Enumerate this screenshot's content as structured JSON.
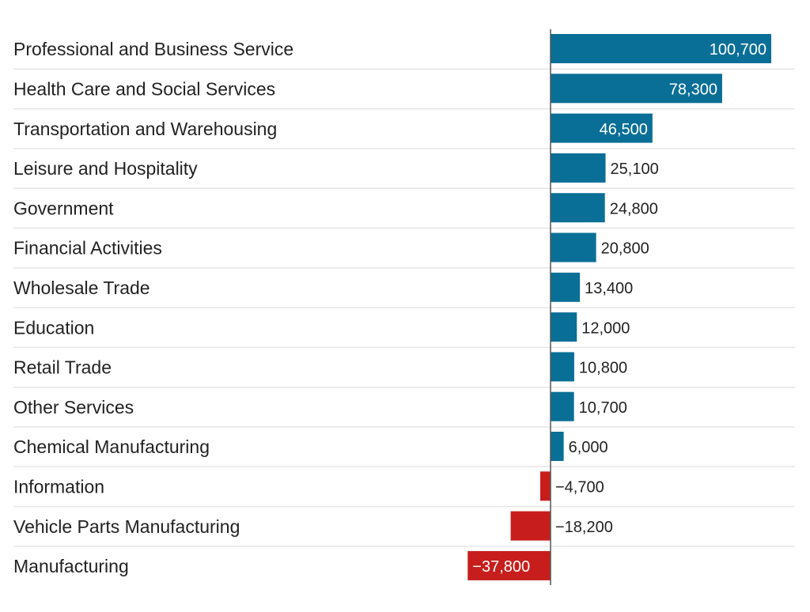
{
  "chart_data": {
    "type": "bar",
    "orientation": "horizontal",
    "title": "",
    "xlabel": "",
    "ylabel": "",
    "categories": [
      "Professional and Business Service",
      "Health Care and Social Services",
      "Transportation and Warehousing",
      "Leisure and Hospitality",
      "Government",
      "Financial Activities",
      "Wholesale Trade",
      "Education",
      "Retail Trade",
      "Other Services",
      "Chemical Manufacturing",
      "Information",
      "Vehicle Parts Manufacturing",
      "Manufacturing"
    ],
    "values": [
      100700,
      78300,
      46500,
      25100,
      24800,
      20800,
      13400,
      12000,
      10800,
      10700,
      6000,
      -4700,
      -18200,
      -37800
    ],
    "labels": [
      "100,700",
      "78,300",
      "46,500",
      "25,100",
      "24,800",
      "20,800",
      "13,400",
      "12,000",
      "10,800",
      "10,700",
      "6,000",
      "−4,700",
      "−18,200",
      "−37,800"
    ],
    "xlim": [
      -37800,
      100700
    ],
    "grid": false,
    "colors": {
      "positive": "#0a6f96",
      "negative": "#c71e1d",
      "separator": "#e6e6e6",
      "axis": "#555555"
    }
  }
}
